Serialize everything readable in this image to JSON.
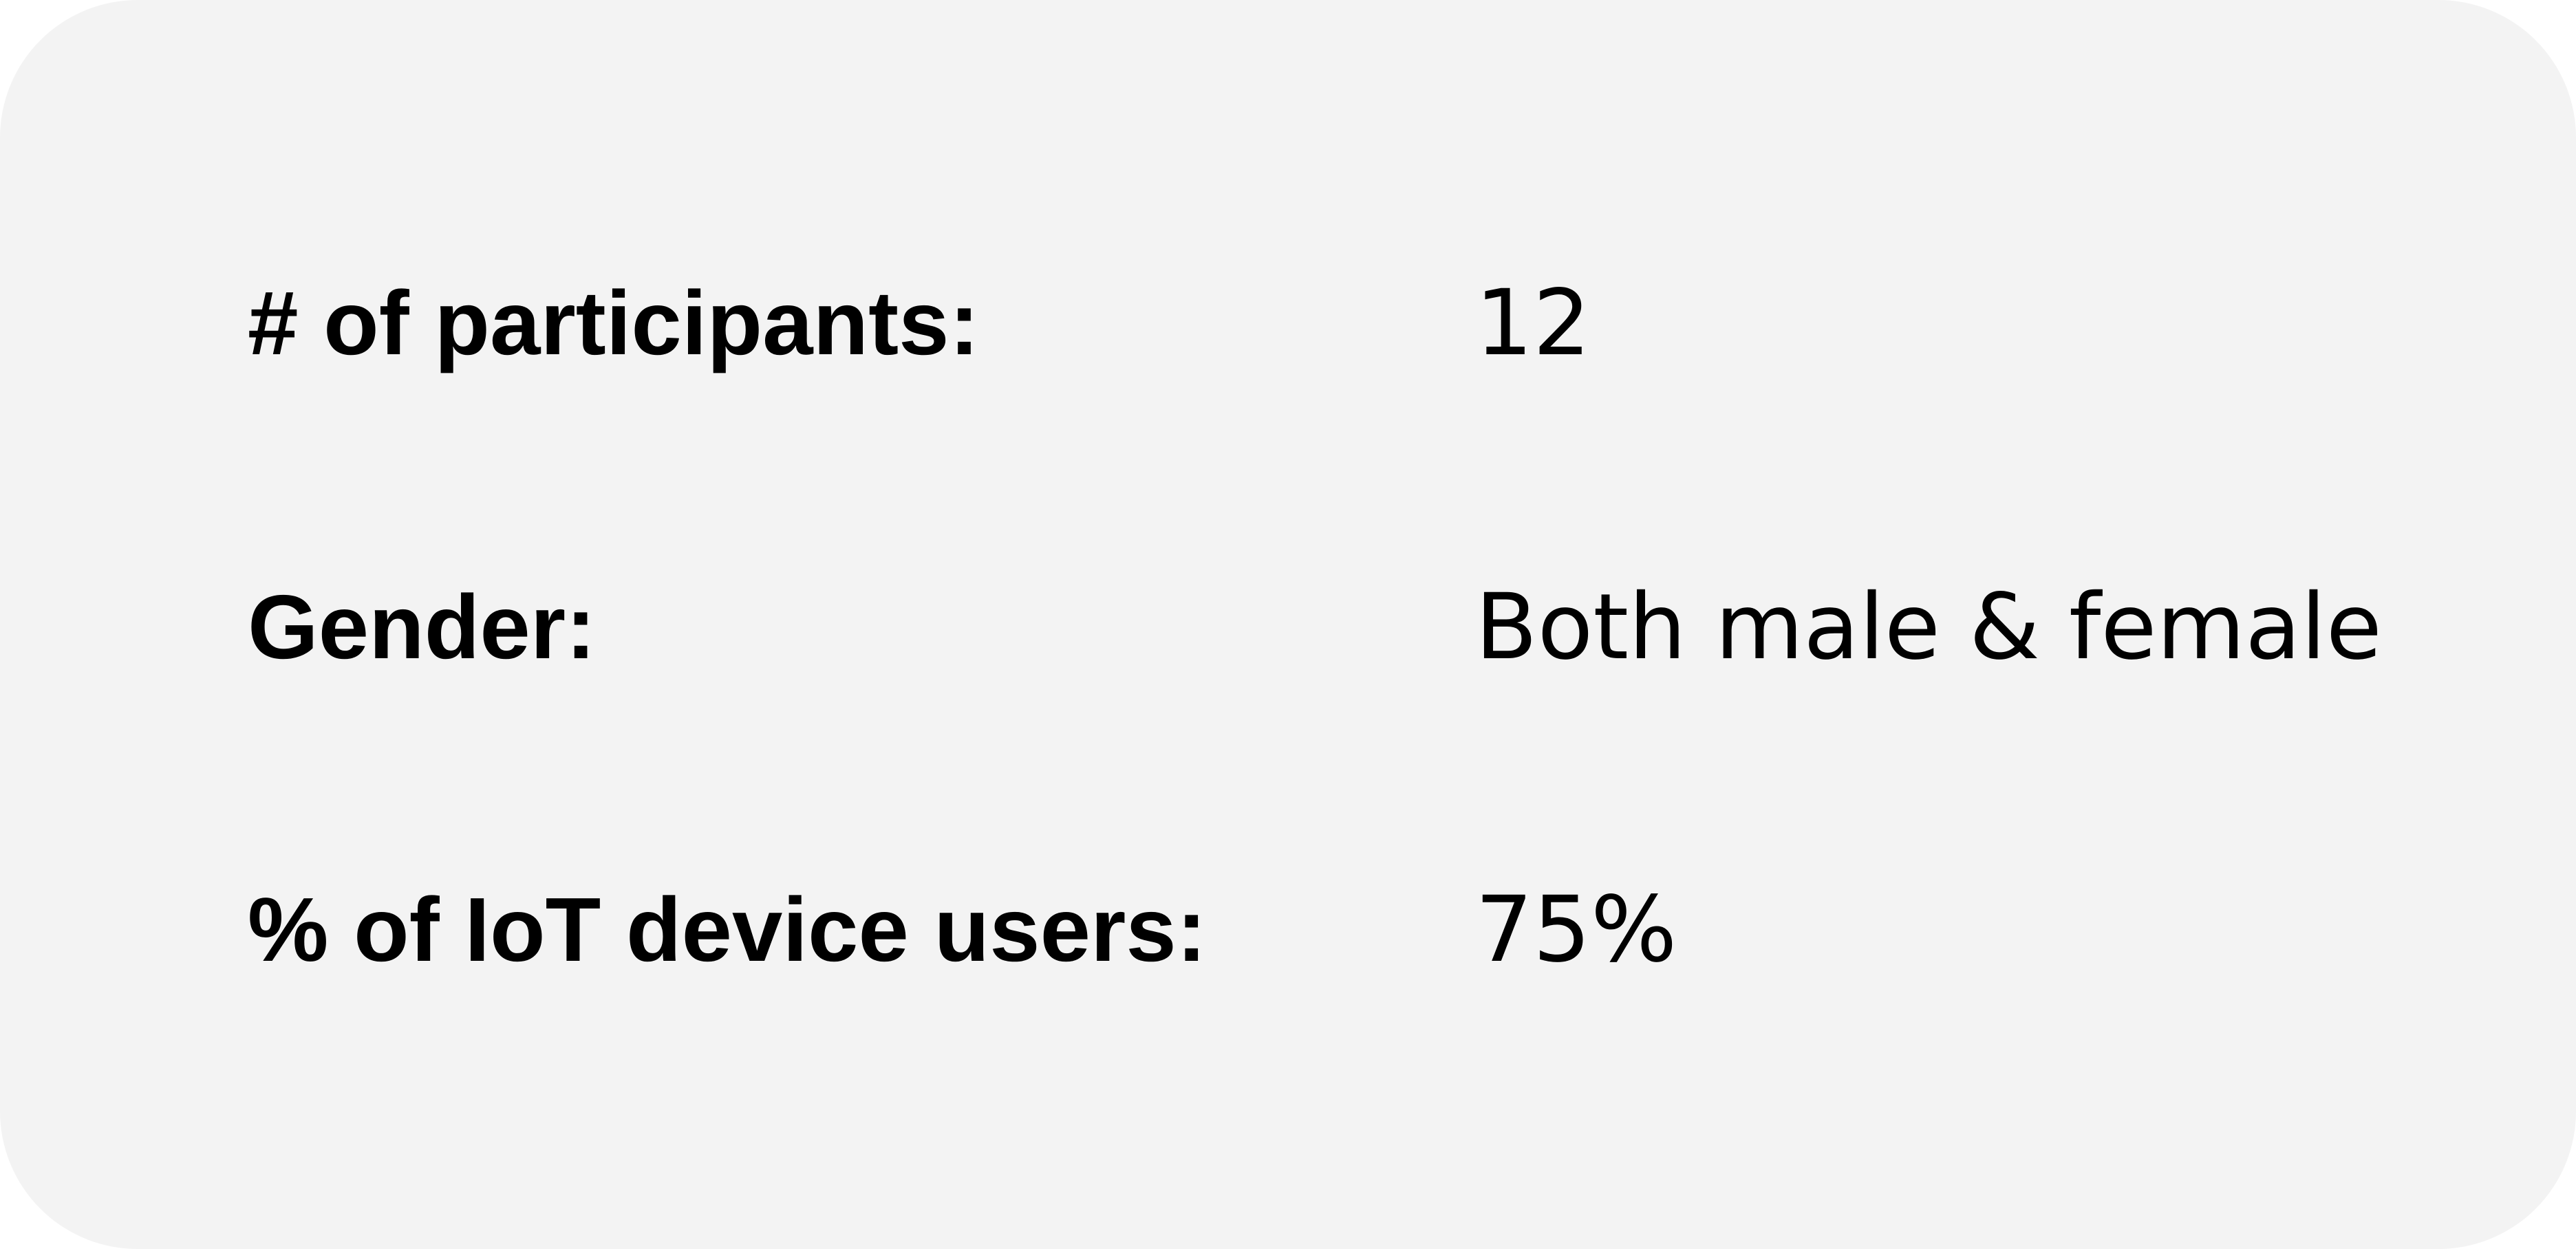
{
  "stats": [
    {
      "label": "# of participants:",
      "value": "12"
    },
    {
      "label": "Gender:",
      "value": "Both male & female"
    },
    {
      "label": "% of IoT device users:",
      "value": "75%"
    }
  ],
  "colors": {
    "card_background": "#f3f3f3",
    "text": "#000000"
  }
}
